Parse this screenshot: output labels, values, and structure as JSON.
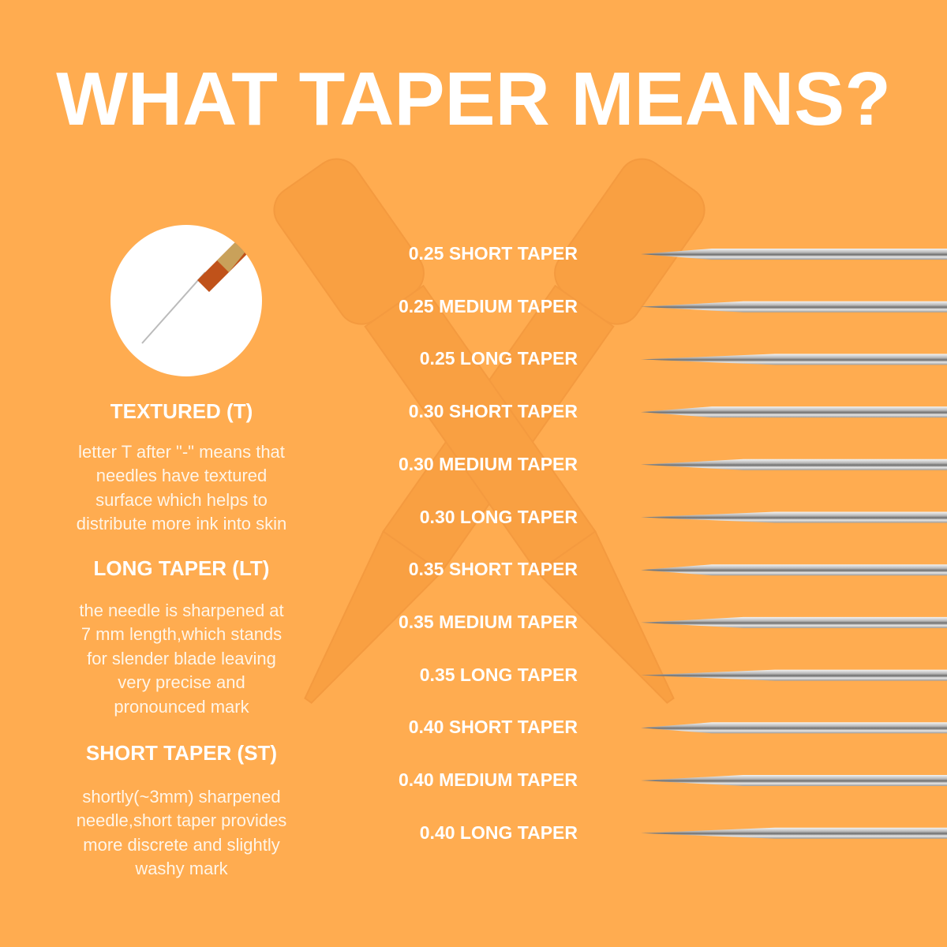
{
  "title": "WHAT TAPER MEANS?",
  "colors": {
    "background": "#FFAC50",
    "text": "#FFFFFF",
    "needle": "#C8C8C8"
  },
  "sections": [
    {
      "heading": "TEXTURED (T)",
      "body": [
        "letter T after \"-\" means that",
        "needles have textured",
        "surface which helps to",
        "distribute more ink into skin"
      ]
    },
    {
      "heading": "LONG TAPER (LT)",
      "body": [
        "the needle is sharpened  at",
        "7 mm length,which stands",
        "for slender blade leaving",
        "very precise and",
        "pronounced mark"
      ]
    },
    {
      "heading": "SHORT TAPER (ST)",
      "body": [
        "shortly(~3mm) sharpened",
        "needle,short taper provides",
        "more discrete and slightly",
        "washy mark"
      ]
    }
  ],
  "tapers": [
    {
      "label": "0.25 SHORT TAPER",
      "taper": "short"
    },
    {
      "label": "0.25 MEDIUM TAPER",
      "taper": "medium"
    },
    {
      "label": "0.25 LONG TAPER",
      "taper": "long"
    },
    {
      "label": "0.30 SHORT TAPER",
      "taper": "short"
    },
    {
      "label": "0.30 MEDIUM TAPER",
      "taper": "medium"
    },
    {
      "label": "0.30 LONG TAPER",
      "taper": "long"
    },
    {
      "label": "0.35 SHORT TAPER",
      "taper": "short"
    },
    {
      "label": "0.35 MEDIUM TAPER",
      "taper": "medium"
    },
    {
      "label": "0.35 LONG TAPER",
      "taper": "long"
    },
    {
      "label": "0.40 SHORT TAPER",
      "taper": "short"
    },
    {
      "label": "0.40 MEDIUM TAPER",
      "taper": "medium"
    },
    {
      "label": "0.40 LONG TAPER",
      "taper": "long"
    }
  ]
}
